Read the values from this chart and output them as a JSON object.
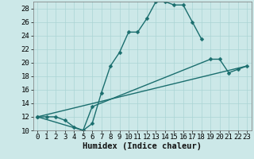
{
  "xlabel": "Humidex (Indice chaleur)",
  "xlim": [
    -0.5,
    23.5
  ],
  "ylim": [
    10,
    29
  ],
  "yticks": [
    10,
    12,
    14,
    16,
    18,
    20,
    22,
    24,
    26,
    28
  ],
  "xticks": [
    0,
    1,
    2,
    3,
    4,
    5,
    6,
    7,
    8,
    9,
    10,
    11,
    12,
    13,
    14,
    15,
    16,
    17,
    18,
    19,
    20,
    21,
    22,
    23
  ],
  "bg_color": "#cce8e8",
  "line_color": "#1a6e6e",
  "grid_color": "#aad4d4",
  "line1_x": [
    0,
    1,
    2,
    3,
    4,
    5,
    6,
    7,
    8,
    9,
    10,
    11,
    12,
    13,
    14,
    15,
    16,
    17,
    18
  ],
  "line1_y": [
    12,
    12,
    12,
    11.5,
    10.5,
    10,
    11,
    15.5,
    19.5,
    21.5,
    24.5,
    24.5,
    26.5,
    29,
    29,
    28.5,
    28.5,
    26,
    23.5
  ],
  "line2_x": [
    0,
    5,
    6,
    19,
    20,
    21,
    22,
    23
  ],
  "line2_y": [
    12,
    10,
    13.5,
    20.5,
    20.5,
    18.5,
    19,
    19.5
  ],
  "line3_x": [
    0,
    23
  ],
  "line3_y": [
    12,
    19.5
  ],
  "markersize": 2.5,
  "linewidth": 1.0,
  "tick_fontsize": 6.5,
  "xlabel_fontsize": 7.5
}
